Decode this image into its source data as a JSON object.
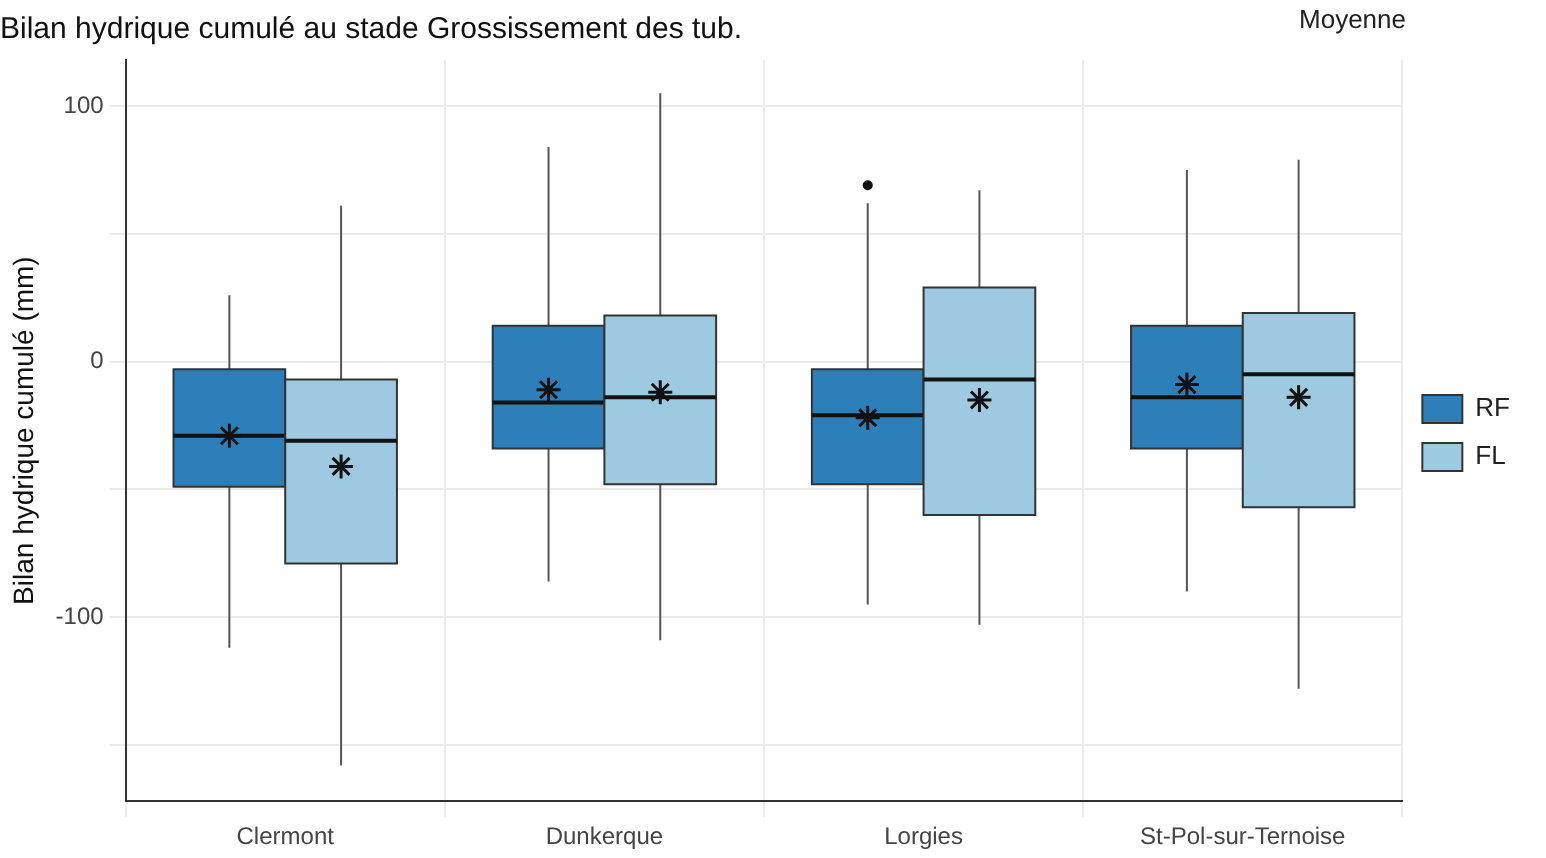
{
  "chart_data": {
    "type": "box",
    "title": "Bilan hydrique cumulé au stade Grossissement des tub.",
    "ylabel": "Bilan hydrique cumulé (mm)",
    "categories": [
      "Clermont",
      "Dunkerque",
      "Lorgies",
      "St-Pol-sur-Ternoise"
    ],
    "series": [
      {
        "name": "RF",
        "color": "#2c7fb8",
        "boxes": [
          {
            "low": -112,
            "q1": -49,
            "median": -29,
            "q3": -3,
            "high": 26,
            "mean": -29
          },
          {
            "low": -86,
            "q1": -34,
            "median": -16,
            "q3": 14,
            "high": 84,
            "mean": -11
          },
          {
            "low": -95,
            "q1": -48,
            "median": -21,
            "q3": -3,
            "high": 62,
            "mean": -22,
            "outliers": [
              69
            ]
          },
          {
            "low": -90,
            "q1": -34,
            "median": -14,
            "q3": 14,
            "high": 75,
            "mean": -9
          }
        ]
      },
      {
        "name": "FL",
        "color": "#9ecae1",
        "boxes": [
          {
            "low": -158,
            "q1": -79,
            "median": -31,
            "q3": -7,
            "high": 61,
            "mean": -41
          },
          {
            "low": -109,
            "q1": -48,
            "median": -14,
            "q3": 18,
            "high": 105,
            "mean": -12
          },
          {
            "low": -103,
            "q1": -60,
            "median": -7,
            "q3": 29,
            "high": 67,
            "mean": -15
          },
          {
            "low": -128,
            "q1": -57,
            "median": -5,
            "q3": 19,
            "high": 79,
            "mean": -14
          }
        ]
      }
    ],
    "ylim": [
      -172,
      118
    ],
    "yticks": [
      {
        "value": -150,
        "label": null
      },
      -100,
      {
        "value": -50,
        "label": null
      },
      0,
      {
        "value": 50,
        "label": null
      },
      100
    ],
    "grid": true,
    "legend": "right",
    "annotations": [
      "Moyenne"
    ]
  }
}
